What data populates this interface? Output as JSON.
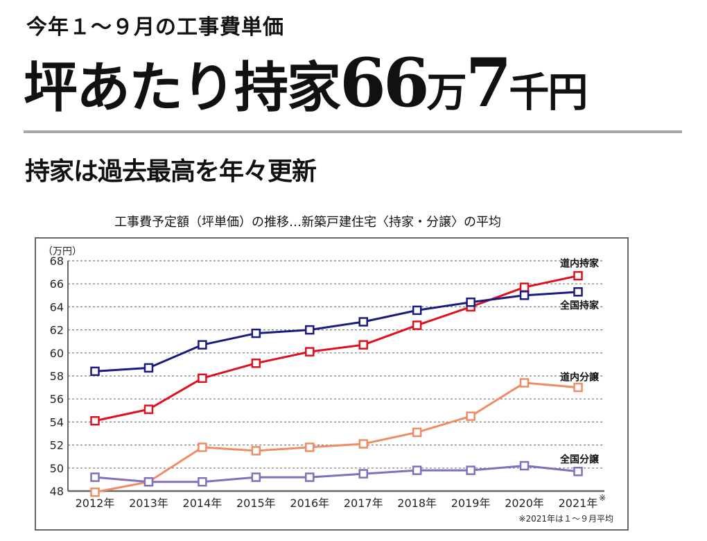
{
  "header": {
    "kicker": "今年１～９月の工事費単価",
    "headline_prefix": "坪あたり持家",
    "headline_num1": "66",
    "headline_unit1": "万",
    "headline_num2": "7",
    "headline_unit2": "千円",
    "subhead": "持家は過去最高を年々更新"
  },
  "chart_data": {
    "type": "line",
    "title": "工事費予定額（坪単価）の推移…新築戸建住宅〈持家・分譲〉の平均",
    "xlabel": "",
    "ylabel": "（万円）",
    "ylim": [
      48,
      68
    ],
    "yticks": [
      48,
      50,
      52,
      54,
      56,
      58,
      60,
      62,
      64,
      66,
      68
    ],
    "grid": true,
    "categories": [
      "2012年",
      "2013年",
      "2014年",
      "2015年",
      "2016年",
      "2017年",
      "2018年",
      "2019年",
      "2020年",
      "2021年"
    ],
    "last_category_mark": "※",
    "note": "※2021年は１～９月平均",
    "series": [
      {
        "name": "道内持家",
        "color": "#e0101e",
        "values": [
          54.1,
          55.1,
          57.8,
          59.1,
          60.1,
          60.7,
          62.4,
          64.0,
          65.7,
          66.7
        ]
      },
      {
        "name": "全国持家",
        "color": "#1a1a80",
        "values": [
          58.4,
          58.7,
          60.7,
          61.7,
          62.0,
          62.7,
          63.7,
          64.4,
          65.0,
          65.3
        ]
      },
      {
        "name": "道内分譲",
        "color": "#f08c64",
        "values": [
          47.9,
          48.8,
          51.8,
          51.5,
          51.8,
          52.1,
          53.1,
          54.5,
          57.4,
          57.0
        ]
      },
      {
        "name": "全国分譲",
        "color": "#8070bc",
        "values": [
          49.2,
          48.8,
          48.8,
          49.2,
          49.2,
          49.5,
          49.8,
          49.8,
          50.2,
          49.7
        ]
      }
    ]
  }
}
